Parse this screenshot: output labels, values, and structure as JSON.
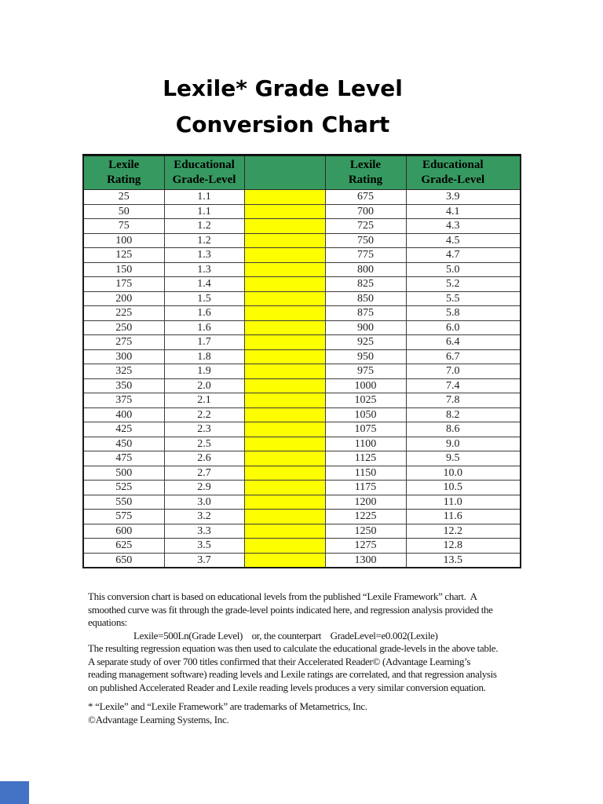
{
  "title": {
    "line1": "Lexile* Grade Level",
    "line2": "Conversion Chart"
  },
  "table": {
    "headers": [
      "Lexile\nRating",
      "Educational\nGrade-Level",
      "",
      "Lexile\nRating",
      "Educational\nGrade-Level"
    ],
    "rows": [
      [
        "25",
        "1.1",
        "675",
        "3.9"
      ],
      [
        "50",
        "1.1",
        "700",
        "4.1"
      ],
      [
        "75",
        "1.2",
        "725",
        "4.3"
      ],
      [
        "100",
        "1.2",
        "750",
        "4.5"
      ],
      [
        "125",
        "1.3",
        "775",
        "4.7"
      ],
      [
        "150",
        "1.3",
        "800",
        "5.0"
      ],
      [
        "175",
        "1.4",
        "825",
        "5.2"
      ],
      [
        "200",
        "1.5",
        "850",
        "5.5"
      ],
      [
        "225",
        "1.6",
        "875",
        "5.8"
      ],
      [
        "250",
        "1.6",
        "900",
        "6.0"
      ],
      [
        "275",
        "1.7",
        "925",
        "6.4"
      ],
      [
        "300",
        "1.8",
        "950",
        "6.7"
      ],
      [
        "325",
        "1.9",
        "975",
        "7.0"
      ],
      [
        "350",
        "2.0",
        "1000",
        "7.4"
      ],
      [
        "375",
        "2.1",
        "1025",
        "7.8"
      ],
      [
        "400",
        "2.2",
        "1050",
        "8.2"
      ],
      [
        "425",
        "2.3",
        "1075",
        "8.6"
      ],
      [
        "450",
        "2.5",
        "1100",
        "9.0"
      ],
      [
        "475",
        "2.6",
        "1125",
        "9.5"
      ],
      [
        "500",
        "2.7",
        "1150",
        "10.0"
      ],
      [
        "525",
        "2.9",
        "1175",
        "10.5"
      ],
      [
        "550",
        "3.0",
        "1200",
        "11.0"
      ],
      [
        "575",
        "3.2",
        "1225",
        "11.6"
      ],
      [
        "600",
        "3.3",
        "1250",
        "12.2"
      ],
      [
        "625",
        "3.5",
        "1275",
        "12.8"
      ],
      [
        "650",
        "3.7",
        "1300",
        "13.5"
      ]
    ]
  },
  "notes": {
    "lines": [
      "This conversion chart is based on educational levels from the published “Lexile Framework” chart.  A",
      "smoothed curve was fit through the grade-level points indicated here, and regression analysis provided the",
      "equations:",
      "                    Lexile=500Ln(Grade Level)    or, the counterpart    GradeLevel=e0.002(Lexile)",
      "The resulting regression equation was then used to calculate the educational grade-levels in the above table.",
      "A separate study of over 700 titles confirmed that their Accelerated Reader© (Advantage Learning’s",
      "reading management software) reading levels and Lexile ratings are correlated, and that regression analysis",
      "on published Accelerated Reader and Lexile reading levels produces a very similar conversion equation."
    ]
  },
  "footnotes": {
    "lines": [
      "* “Lexile” and “Lexile Framework” are trademarks of Metametrics, Inc.",
      "©Advantage Learning Systems, Inc."
    ]
  },
  "colors": {
    "header_green": "#369a60",
    "separator_yellow": "#fdff00",
    "corner_blue": "#4472c4",
    "text": "#151515"
  }
}
